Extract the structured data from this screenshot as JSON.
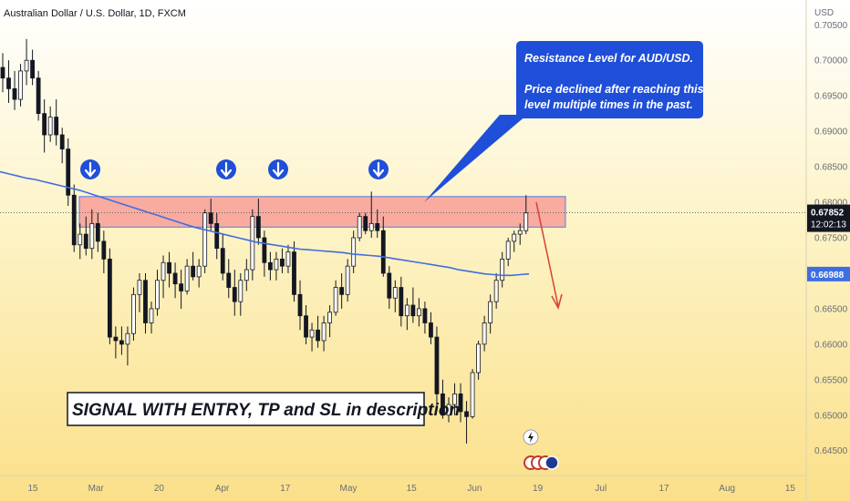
{
  "header": {
    "title": "Australian Dollar / U.S. Dollar, 1D, FXCM",
    "currency": "USD"
  },
  "chart_data": {
    "type": "candlestick",
    "symbol": "AUD/USD",
    "interval": "1D",
    "source": "FXCM",
    "ylim": [
      0.6415,
      0.7085
    ],
    "y_ticks": [
      "0.70500",
      "0.70000",
      "0.69500",
      "0.69000",
      "0.68500",
      "0.68000",
      "0.67500",
      "0.67000",
      "0.66500",
      "0.66000",
      "0.65500",
      "0.65000",
      "0.64500"
    ],
    "x_ticks": [
      "15",
      "Mar",
      "20",
      "Apr",
      "17",
      "May",
      "15",
      "Jun",
      "19",
      "Jul",
      "17",
      "Aug",
      "15"
    ],
    "last_price": "0.67852",
    "countdown": "12:02:13",
    "ma_value": "0.66988",
    "candles": [
      [
        0.699,
        0.701,
        0.6955,
        0.6975
      ],
      [
        0.6975,
        0.7,
        0.694,
        0.696
      ],
      [
        0.696,
        0.6985,
        0.693,
        0.6945
      ],
      [
        0.6945,
        0.6995,
        0.6935,
        0.6985
      ],
      [
        0.6985,
        0.703,
        0.6965,
        0.7
      ],
      [
        0.7,
        0.7015,
        0.6965,
        0.6975
      ],
      [
        0.6975,
        0.6985,
        0.6915,
        0.6925
      ],
      [
        0.6925,
        0.6945,
        0.687,
        0.6895
      ],
      [
        0.6895,
        0.6935,
        0.6885,
        0.692
      ],
      [
        0.692,
        0.6945,
        0.688,
        0.6895
      ],
      [
        0.6895,
        0.6905,
        0.6855,
        0.6875
      ],
      [
        0.6875,
        0.689,
        0.6795,
        0.681
      ],
      [
        0.681,
        0.6825,
        0.673,
        0.674
      ],
      [
        0.674,
        0.677,
        0.672,
        0.6755
      ],
      [
        0.6755,
        0.678,
        0.6725,
        0.6735
      ],
      [
        0.6735,
        0.679,
        0.672,
        0.677
      ],
      [
        0.677,
        0.6785,
        0.673,
        0.6745
      ],
      [
        0.6745,
        0.676,
        0.67,
        0.672
      ],
      [
        0.672,
        0.6735,
        0.66,
        0.661
      ],
      [
        0.661,
        0.6625,
        0.658,
        0.6605
      ],
      [
        0.6605,
        0.6625,
        0.6585,
        0.66
      ],
      [
        0.66,
        0.6625,
        0.657,
        0.6615
      ],
      [
        0.6615,
        0.668,
        0.6605,
        0.667
      ],
      [
        0.667,
        0.67,
        0.6645,
        0.669
      ],
      [
        0.669,
        0.67,
        0.6615,
        0.663
      ],
      [
        0.663,
        0.666,
        0.6615,
        0.665
      ],
      [
        0.665,
        0.6705,
        0.664,
        0.669
      ],
      [
        0.669,
        0.6725,
        0.6665,
        0.6715
      ],
      [
        0.6715,
        0.673,
        0.668,
        0.67
      ],
      [
        0.67,
        0.6715,
        0.6665,
        0.6685
      ],
      [
        0.6685,
        0.6705,
        0.665,
        0.6675
      ],
      [
        0.6675,
        0.672,
        0.667,
        0.671
      ],
      [
        0.671,
        0.673,
        0.669,
        0.6695
      ],
      [
        0.6695,
        0.672,
        0.668,
        0.671
      ],
      [
        0.671,
        0.679,
        0.67,
        0.6785
      ],
      [
        0.6785,
        0.6805,
        0.676,
        0.677
      ],
      [
        0.677,
        0.6785,
        0.672,
        0.6735
      ],
      [
        0.6735,
        0.6755,
        0.669,
        0.67
      ],
      [
        0.67,
        0.672,
        0.6665,
        0.668
      ],
      [
        0.668,
        0.6705,
        0.664,
        0.666
      ],
      [
        0.666,
        0.67,
        0.664,
        0.669
      ],
      [
        0.669,
        0.672,
        0.6675,
        0.6705
      ],
      [
        0.6705,
        0.679,
        0.669,
        0.678
      ],
      [
        0.678,
        0.6805,
        0.674,
        0.675
      ],
      [
        0.675,
        0.676,
        0.6695,
        0.6715
      ],
      [
        0.6715,
        0.673,
        0.669,
        0.6705
      ],
      [
        0.6705,
        0.673,
        0.669,
        0.672
      ],
      [
        0.672,
        0.6735,
        0.67,
        0.671
      ],
      [
        0.671,
        0.674,
        0.67,
        0.673
      ],
      [
        0.673,
        0.6745,
        0.666,
        0.667
      ],
      [
        0.667,
        0.669,
        0.662,
        0.664
      ],
      [
        0.664,
        0.6655,
        0.66,
        0.661
      ],
      [
        0.661,
        0.663,
        0.659,
        0.662
      ],
      [
        0.662,
        0.664,
        0.6595,
        0.6605
      ],
      [
        0.6605,
        0.664,
        0.659,
        0.663
      ],
      [
        0.663,
        0.6655,
        0.661,
        0.6645
      ],
      [
        0.6645,
        0.669,
        0.664,
        0.668
      ],
      [
        0.668,
        0.67,
        0.665,
        0.667
      ],
      [
        0.667,
        0.672,
        0.666,
        0.671
      ],
      [
        0.671,
        0.676,
        0.67,
        0.675
      ],
      [
        0.675,
        0.6785,
        0.6745,
        0.678
      ],
      [
        0.678,
        0.6785,
        0.6755,
        0.676
      ],
      [
        0.676,
        0.6815,
        0.675,
        0.677
      ],
      [
        0.677,
        0.679,
        0.675,
        0.676
      ],
      [
        0.676,
        0.678,
        0.6695,
        0.67
      ],
      [
        0.67,
        0.671,
        0.665,
        0.6665
      ],
      [
        0.6665,
        0.669,
        0.6645,
        0.668
      ],
      [
        0.668,
        0.6695,
        0.6625,
        0.664
      ],
      [
        0.664,
        0.6665,
        0.662,
        0.6655
      ],
      [
        0.6655,
        0.668,
        0.663,
        0.664
      ],
      [
        0.664,
        0.6665,
        0.6625,
        0.665
      ],
      [
        0.665,
        0.666,
        0.6615,
        0.663
      ],
      [
        0.663,
        0.6645,
        0.66,
        0.661
      ],
      [
        0.661,
        0.6625,
        0.651,
        0.653
      ],
      [
        0.653,
        0.655,
        0.6495,
        0.65
      ],
      [
        0.65,
        0.6525,
        0.649,
        0.6515
      ],
      [
        0.6515,
        0.6545,
        0.65,
        0.653
      ],
      [
        0.653,
        0.6545,
        0.649,
        0.6505
      ],
      [
        0.6505,
        0.652,
        0.646,
        0.6498
      ],
      [
        0.6498,
        0.6565,
        0.6495,
        0.656
      ],
      [
        0.656,
        0.6605,
        0.655,
        0.66
      ],
      [
        0.66,
        0.664,
        0.659,
        0.663
      ],
      [
        0.663,
        0.667,
        0.6615,
        0.666
      ],
      [
        0.666,
        0.67,
        0.665,
        0.669
      ],
      [
        0.669,
        0.673,
        0.668,
        0.672
      ],
      [
        0.672,
        0.675,
        0.671,
        0.6745
      ],
      [
        0.6745,
        0.676,
        0.673,
        0.6755
      ],
      [
        0.6755,
        0.677,
        0.674,
        0.676
      ],
      [
        0.676,
        0.681,
        0.6755,
        0.6785
      ]
    ],
    "moving_average": [
      0.6843,
      0.684,
      0.6837,
      0.6834,
      0.6832,
      0.6829,
      0.6826,
      0.6823,
      0.682,
      0.6817,
      0.6813,
      0.6809,
      0.6805,
      0.6801,
      0.6797,
      0.6793,
      0.6789,
      0.6785,
      0.6781,
      0.6777,
      0.6773,
      0.6769,
      0.6765,
      0.6762,
      0.6759,
      0.6756,
      0.6753,
      0.675,
      0.6747,
      0.6744,
      0.6742,
      0.674,
      0.6738,
      0.6736,
      0.6734,
      0.6733,
      0.6732,
      0.6731,
      0.673,
      0.6729,
      0.6727,
      0.6726,
      0.6725,
      0.6724,
      0.6722,
      0.672,
      0.6718,
      0.6716,
      0.6714,
      0.6712,
      0.671,
      0.6708,
      0.6705,
      0.6703,
      0.6701,
      0.6699,
      0.6698,
      0.6697,
      0.6697,
      0.6698,
      0.6699
    ],
    "resistance_zone": [
      0.6765,
      0.6808
    ],
    "resistance_arrows": 4
  },
  "annotations": {
    "callout_lines": [
      "Resistance Level for AUD/USD.",
      "",
      "Price declined after reaching this",
      "level multiple times in the past."
    ],
    "signal_text": "SIGNAL WITH ENTRY, TP and SL in description"
  },
  "colors": {
    "background_top": "#ffffff",
    "background_bottom": "#fbe28a",
    "bull": "#ffffff",
    "bear": "#131722",
    "ma": "#3f6ee0",
    "zone": "#f8a39a",
    "zone_border": "#4f7ce8",
    "callout": "#1f4fd8",
    "projection": "#d6422d",
    "badge_price": "#131722",
    "badge_ma": "#3f6ee0"
  }
}
